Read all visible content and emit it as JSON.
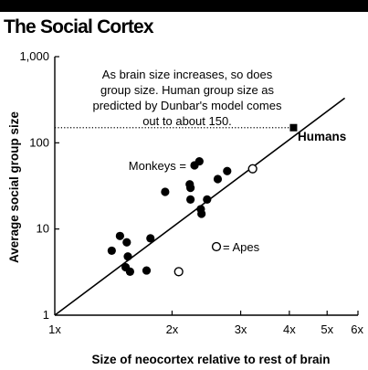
{
  "title": "The Social Cortex",
  "chart_data": {
    "type": "scatter",
    "xlabel": "Size of neocortex relative to rest of brain",
    "ylabel": "Average social group size",
    "xscale": "log",
    "yscale": "log",
    "xlim": [
      1,
      6
    ],
    "ylim": [
      1,
      1000
    ],
    "x_ticks": [
      {
        "value": 1,
        "label": "1x"
      },
      {
        "value": 2,
        "label": "2x"
      },
      {
        "value": 3,
        "label": "3x"
      },
      {
        "value": 4,
        "label": "4x"
      },
      {
        "value": 5,
        "label": "5x"
      },
      {
        "value": 6,
        "label": "6x"
      }
    ],
    "y_ticks": [
      {
        "value": 1,
        "label": "1"
      },
      {
        "value": 10,
        "label": "10"
      },
      {
        "value": 100,
        "label": "100"
      },
      {
        "value": 1000,
        "label": "1,000"
      }
    ],
    "annotation_lines": [
      "As brain size increases, so does",
      "group size. Human group size as",
      "predicted by Dunbar's model comes",
      "out to about 150."
    ],
    "regression_line": {
      "from": [
        1,
        1
      ],
      "to": [
        5.55,
        330
      ]
    },
    "humans_level": 150,
    "series": [
      {
        "name": "Monkeys",
        "marker": "filled-circle",
        "points": [
          {
            "x": 1.4,
            "y": 5.6
          },
          {
            "x": 1.47,
            "y": 8.3
          },
          {
            "x": 1.53,
            "y": 7.0
          },
          {
            "x": 1.54,
            "y": 4.8
          },
          {
            "x": 1.52,
            "y": 3.6
          },
          {
            "x": 1.56,
            "y": 3.2
          },
          {
            "x": 1.72,
            "y": 3.3
          },
          {
            "x": 1.76,
            "y": 7.8
          },
          {
            "x": 1.92,
            "y": 27
          },
          {
            "x": 2.22,
            "y": 33
          },
          {
            "x": 2.23,
            "y": 30
          },
          {
            "x": 2.23,
            "y": 22
          },
          {
            "x": 2.37,
            "y": 17
          },
          {
            "x": 2.38,
            "y": 15
          },
          {
            "x": 2.46,
            "y": 22
          },
          {
            "x": 2.62,
            "y": 38
          },
          {
            "x": 2.77,
            "y": 47
          },
          {
            "x": 2.35,
            "y": 61
          }
        ]
      },
      {
        "name": "Apes",
        "marker": "open-circle",
        "points": [
          {
            "x": 2.08,
            "y": 3.2
          },
          {
            "x": 3.22,
            "y": 50
          }
        ]
      },
      {
        "name": "Humans",
        "marker": "filled-square",
        "points": [
          {
            "x": 4.1,
            "y": 150
          }
        ]
      }
    ],
    "legend_labels": {
      "monkeys": "Monkeys =",
      "apes": "= Apes",
      "humans": "Humans"
    }
  }
}
